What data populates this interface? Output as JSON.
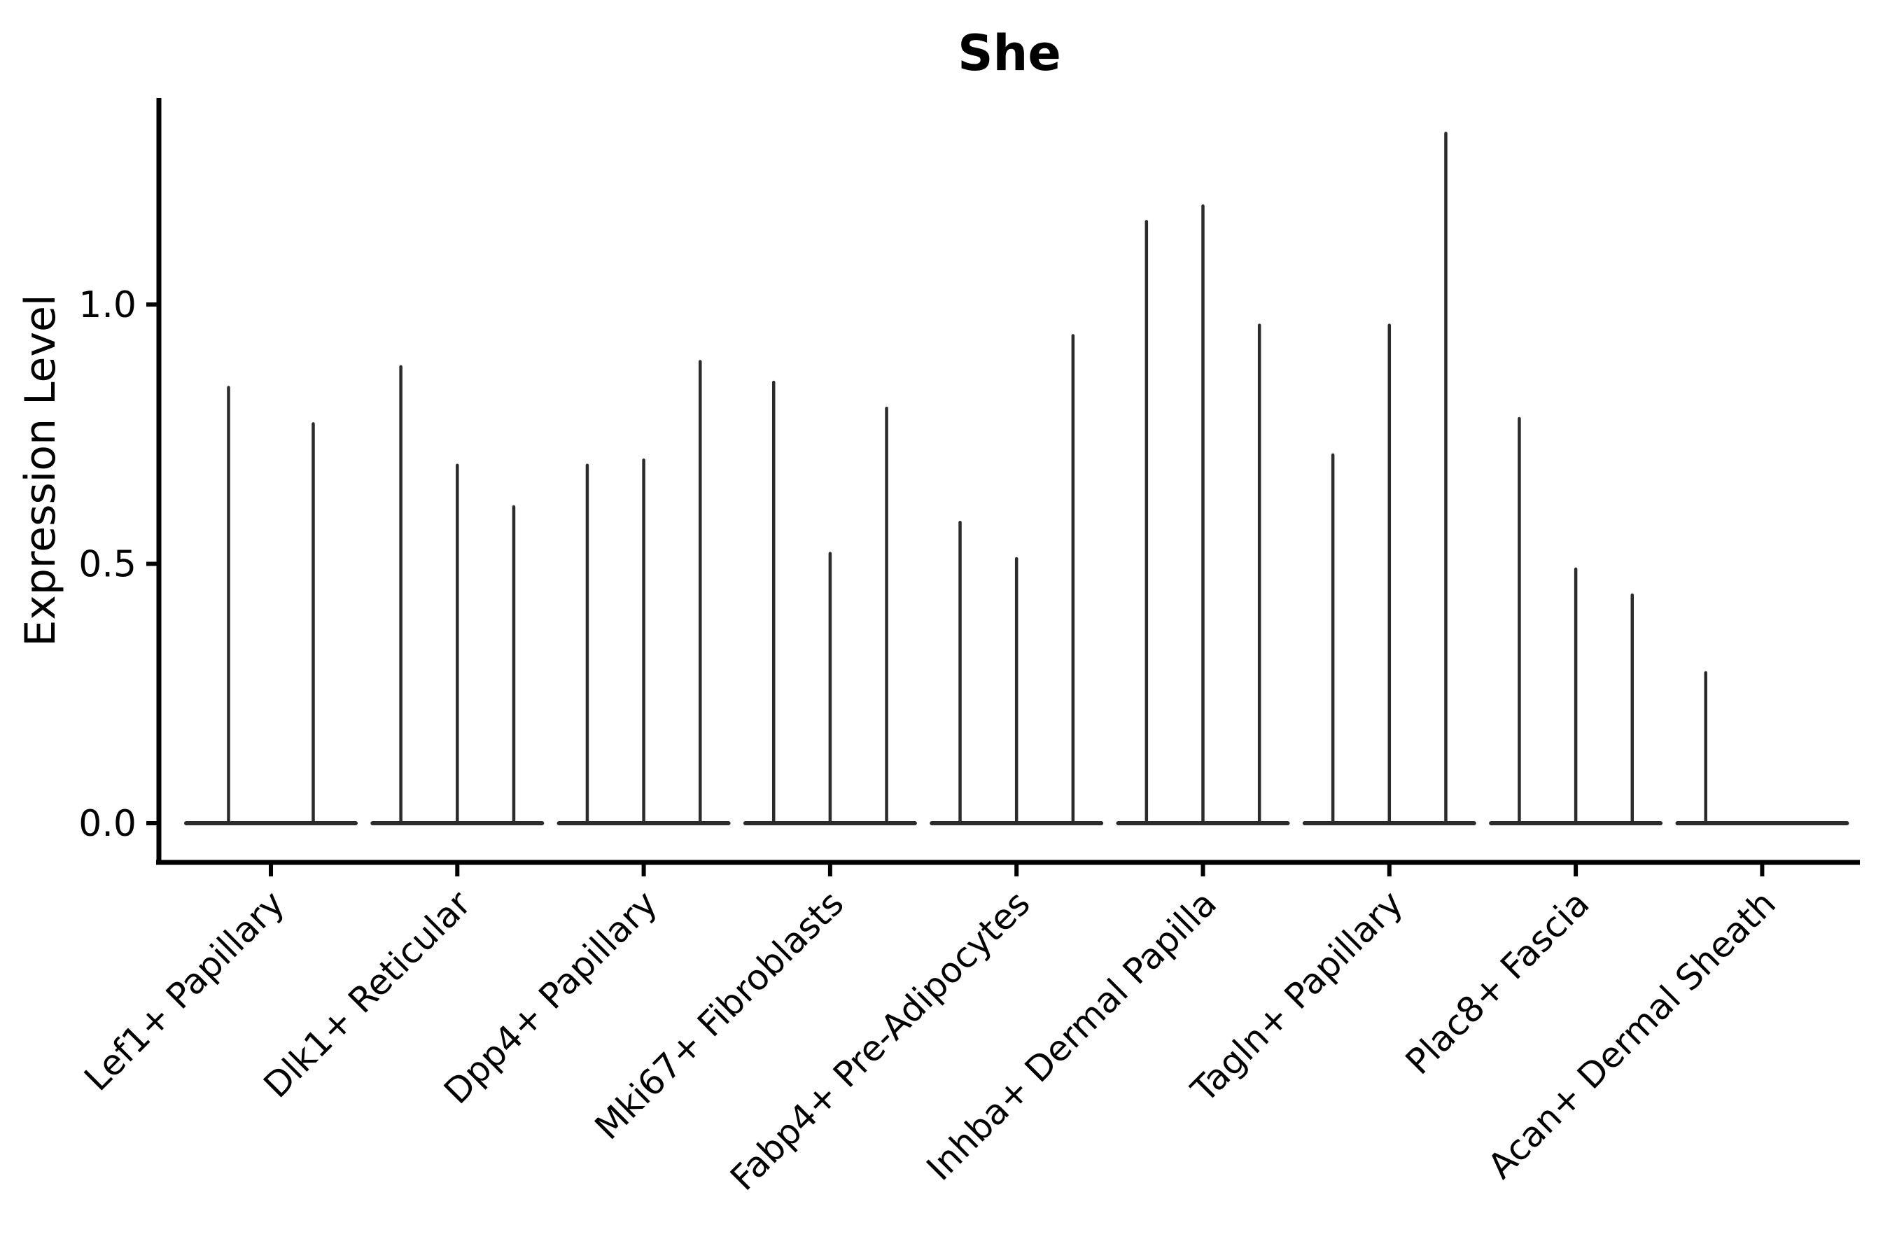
{
  "title": "She",
  "chart_data": {
    "type": "violin",
    "title": "She",
    "title_style": "bold",
    "xlabel": "",
    "ylabel": "Expression Level",
    "ylim": [
      -0.08,
      1.4
    ],
    "grid": false,
    "legend": null,
    "background": "#ffffff",
    "yticks": [
      {
        "value": 0.0,
        "label": "0.0"
      },
      {
        "value": 0.5,
        "label": "0.5"
      },
      {
        "value": 1.0,
        "label": "1.0"
      }
    ],
    "categories": [
      "Lef1+ Papillary",
      "Dlk1+ Reticular",
      "Dpp4+ Papillary",
      "Mki67+ Fibroblasts",
      "Fabp4+ Pre-Adipocytes",
      "Inhba+ Dermal Papilla",
      "Tagln+ Papillary",
      "Plac8+ Fascia",
      "Acan+ Dermal Sheath"
    ],
    "groups": [
      {
        "label": "Lef1+ Papillary",
        "violin_max_values": [
          0.84,
          0.77
        ]
      },
      {
        "label": "Dlk1+ Reticular",
        "violin_max_values": [
          0.88,
          0.69,
          0.61
        ]
      },
      {
        "label": "Dpp4+ Papillary",
        "violin_max_values": [
          0.69,
          0.7,
          0.89
        ]
      },
      {
        "label": "Mki67+ Fibroblasts",
        "violin_max_values": [
          0.85,
          0.52,
          0.8
        ]
      },
      {
        "label": "Fabp4+ Pre-Adipocytes",
        "violin_max_values": [
          0.58,
          0.51,
          0.94
        ]
      },
      {
        "label": "Inhba+ Dermal Papilla",
        "violin_max_values": [
          1.16,
          1.19,
          0.96
        ]
      },
      {
        "label": "Tagln+ Papillary",
        "violin_max_values": [
          0.71,
          0.96,
          1.33
        ]
      },
      {
        "label": "Plac8+ Fascia",
        "violin_max_values": [
          0.78,
          0.49,
          0.44
        ]
      },
      {
        "label": "Acan+ Dermal Sheath",
        "violin_max_values": [
          0.29,
          0.0,
          0.0
        ]
      }
    ],
    "colors": {
      "violin": "#2b2b2b",
      "axis": "#000000",
      "text": "#000000",
      "background": "#ffffff"
    }
  }
}
